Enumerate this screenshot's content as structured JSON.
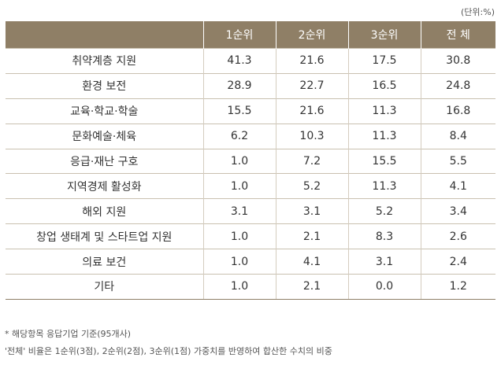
{
  "unit_label": "(단위:%)",
  "table": {
    "headers": [
      "",
      "1순위",
      "2순위",
      "3순위",
      "전 체"
    ],
    "rows": [
      {
        "label": "취약계층 지원",
        "values": [
          "41.3",
          "21.6",
          "17.5",
          "30.8"
        ]
      },
      {
        "label": "환경 보전",
        "values": [
          "28.9",
          "22.7",
          "16.5",
          "24.8"
        ]
      },
      {
        "label": "교육·학교·학술",
        "values": [
          "15.5",
          "21.6",
          "11.3",
          "16.8"
        ]
      },
      {
        "label": "문화예술·체육",
        "values": [
          "6.2",
          "10.3",
          "11.3",
          "8.4"
        ]
      },
      {
        "label": "응급·재난 구호",
        "values": [
          "1.0",
          "7.2",
          "15.5",
          "5.5"
        ]
      },
      {
        "label": "지역경제 활성화",
        "values": [
          "1.0",
          "5.2",
          "11.3",
          "4.1"
        ]
      },
      {
        "label": "해외 지원",
        "values": [
          "3.1",
          "3.1",
          "5.2",
          "3.4"
        ]
      },
      {
        "label": "창업 생태계 및 스타트업 지원",
        "values": [
          "1.0",
          "2.1",
          "8.3",
          "2.6"
        ]
      },
      {
        "label": "의료 보건",
        "values": [
          "1.0",
          "4.1",
          "3.1",
          "2.4"
        ]
      },
      {
        "label": "기타",
        "values": [
          "1.0",
          "2.1",
          "0.0",
          "1.2"
        ]
      }
    ]
  },
  "notes": [
    "* 해당항목 응답기업 기준(95개사)",
    "'전체' 비율은 1순위(3점), 2순위(2점), 3순위(1점) 가중치를 반영하여 합산한 수치의 비중"
  ]
}
